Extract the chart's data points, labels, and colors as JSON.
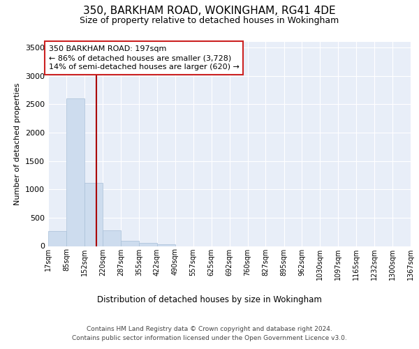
{
  "title": "350, BARKHAM ROAD, WOKINGHAM, RG41 4DE",
  "subtitle": "Size of property relative to detached houses in Wokingham",
  "xlabel": "Distribution of detached houses by size in Wokingham",
  "ylabel": "Number of detached properties",
  "bar_color": "#cddcee",
  "bar_edge_color": "#a8c0d8",
  "background_color": "#ffffff",
  "plot_background_color": "#e8eef8",
  "grid_color": "#ffffff",
  "annotation_line_color": "#aa0000",
  "annotation_box_edge_color": "#cc2222",
  "annotation_text": "350 BARKHAM ROAD: 197sqm\n← 86% of detached houses are smaller (3,728)\n14% of semi-detached houses are larger (620) →",
  "property_size_sqm": 197,
  "bin_edges": [
    17,
    85,
    152,
    220,
    287,
    355,
    422,
    490,
    557,
    625,
    692,
    760,
    827,
    895,
    962,
    1030,
    1097,
    1165,
    1232,
    1300,
    1367
  ],
  "bin_labels": [
    "17sqm",
    "85sqm",
    "152sqm",
    "220sqm",
    "287sqm",
    "355sqm",
    "422sqm",
    "490sqm",
    "557sqm",
    "625sqm",
    "692sqm",
    "760sqm",
    "827sqm",
    "895sqm",
    "962sqm",
    "1030sqm",
    "1097sqm",
    "1165sqm",
    "1232sqm",
    "1300sqm",
    "1367sqm"
  ],
  "bar_heights": [
    270,
    2600,
    1120,
    275,
    95,
    50,
    35,
    0,
    0,
    0,
    0,
    0,
    0,
    0,
    0,
    0,
    0,
    0,
    0,
    0
  ],
  "ylim": [
    0,
    3600
  ],
  "yticks": [
    0,
    500,
    1000,
    1500,
    2000,
    2500,
    3000,
    3500
  ],
  "footer_line1": "Contains HM Land Registry data © Crown copyright and database right 2024.",
  "footer_line2": "Contains public sector information licensed under the Open Government Licence v3.0."
}
